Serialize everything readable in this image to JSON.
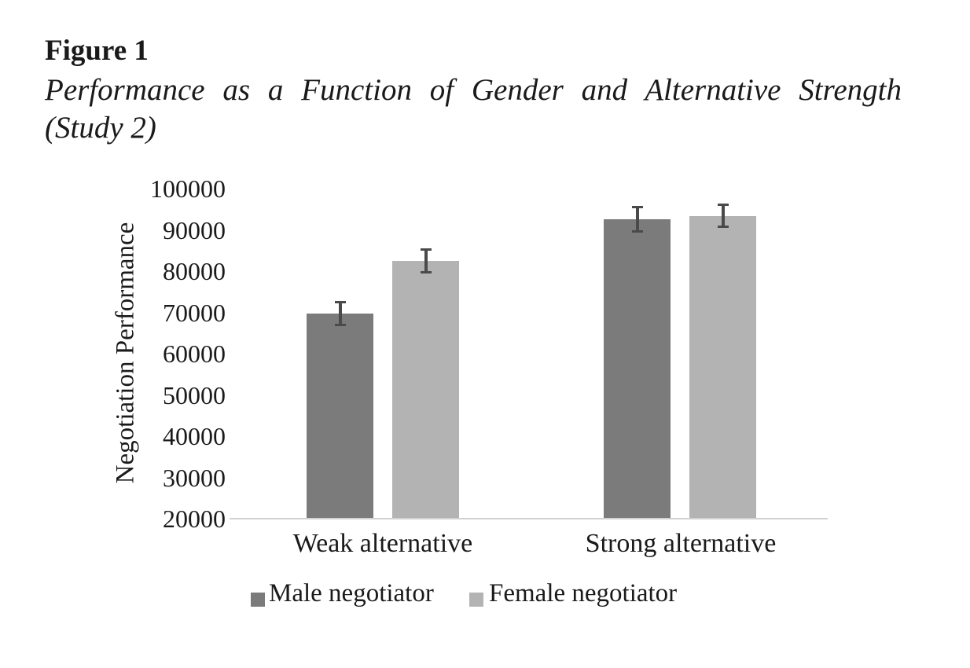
{
  "figure": {
    "label": "Figure 1",
    "caption_line1": "Performance as a Function of Gender and Alternative Strength",
    "caption_line2": "(Study 2)"
  },
  "chart_data": {
    "type": "bar",
    "title": "Performance as a Function of Gender and Alternative Strength (Study 2)",
    "xlabel": "",
    "ylabel": "Negotiation Performance",
    "categories": [
      "Weak alternative",
      "Strong alternative"
    ],
    "series": [
      {
        "name": "Male negotiator",
        "color": "#7b7b7b",
        "values": [
          69700,
          92600
        ],
        "errors": [
          2900,
          3000
        ]
      },
      {
        "name": "Female negotiator",
        "color": "#b3b3b3",
        "values": [
          82500,
          93400
        ],
        "errors": [
          2900,
          2800
        ]
      }
    ],
    "ylim": [
      20000,
      100000
    ],
    "yticks": [
      100000,
      90000,
      80000,
      70000,
      60000,
      50000,
      40000,
      30000,
      20000
    ],
    "grid": false,
    "error_bars": true,
    "legend_position": "bottom",
    "colors": {
      "error_bar": "#4a4a4a",
      "axis_line": "#d2d2d2",
      "text": "#1a1a1a",
      "background": "#ffffff"
    }
  }
}
